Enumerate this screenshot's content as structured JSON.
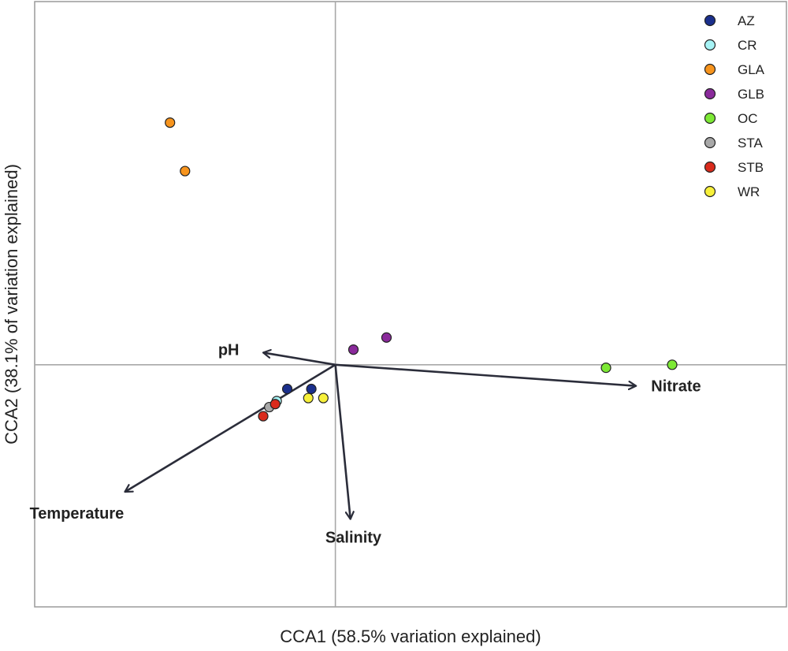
{
  "chart_data": {
    "type": "scatter",
    "title": "",
    "xlabel": "CCA1 (58.5% variation explained)",
    "ylabel": "CCA2 (38.1% of variation explained)",
    "xlim": [
      -1.0,
      1.5
    ],
    "ylim": [
      -0.8,
      1.2
    ],
    "grid": false,
    "reference_lines": {
      "x": 0,
      "y": 0
    },
    "legend_position": "top-right",
    "series": [
      {
        "name": "AZ",
        "color": "#1a2f8c",
        "points": [
          [
            -0.16,
            -0.08
          ],
          [
            -0.08,
            -0.08
          ]
        ]
      },
      {
        "name": "CR",
        "color": "#a6f3f5",
        "points": [
          [
            -0.195,
            -0.12
          ]
        ]
      },
      {
        "name": "GLA",
        "color": "#f7941d",
        "points": [
          [
            -0.55,
            0.8
          ],
          [
            -0.5,
            0.64
          ]
        ]
      },
      {
        "name": "GLB",
        "color": "#8a2a9b",
        "points": [
          [
            0.06,
            0.05
          ],
          [
            0.17,
            0.09
          ]
        ]
      },
      {
        "name": "OC",
        "color": "#7de935",
        "points": [
          [
            0.9,
            -0.01
          ],
          [
            1.12,
            0.0
          ]
        ]
      },
      {
        "name": "STA",
        "color": "#a8a8a8",
        "points": [
          [
            -0.22,
            -0.14
          ]
        ]
      },
      {
        "name": "STB",
        "color": "#d92b1c",
        "points": [
          [
            -0.2,
            -0.13
          ],
          [
            -0.24,
            -0.17
          ]
        ]
      },
      {
        "name": "WR",
        "color": "#f7f03a",
        "points": [
          [
            -0.09,
            -0.11
          ],
          [
            -0.04,
            -0.11
          ]
        ]
      }
    ],
    "vectors": [
      {
        "name": "pH",
        "x": -0.24,
        "y": 0.04,
        "label_x": -0.32,
        "label_y": 0.05
      },
      {
        "name": "Nitrate",
        "x": 1.0,
        "y": -0.07,
        "label_x": 1.05,
        "label_y": -0.07
      },
      {
        "name": "Temperature",
        "x": -0.7,
        "y": -0.42,
        "label_x": -0.86,
        "label_y": -0.49
      },
      {
        "name": "Salinity",
        "x": 0.05,
        "y": -0.51,
        "label_x": 0.06,
        "label_y": -0.57
      }
    ]
  }
}
